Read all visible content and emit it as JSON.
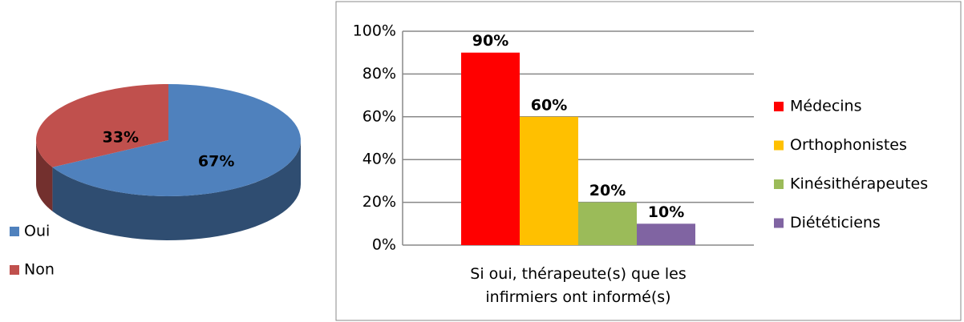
{
  "chart_data": [
    {
      "type": "pie",
      "categories": [
        "Oui",
        "Non"
      ],
      "values": [
        67,
        33
      ],
      "value_labels": [
        "67%",
        "33%"
      ],
      "colors": [
        "#4f81bd",
        "#c0504d"
      ],
      "legend": "bottom-left"
    },
    {
      "type": "bar",
      "categories": [
        "Si oui, thérapeute(s) que les infirmiers ont informé(s)"
      ],
      "series": [
        {
          "name": "Médecins",
          "color": "#ff0000",
          "values": [
            90
          ],
          "value_labels": [
            "90%"
          ]
        },
        {
          "name": "Orthophonistes",
          "color": "#ffc000",
          "values": [
            60
          ],
          "value_labels": [
            "60%"
          ]
        },
        {
          "name": "Kinésithérapeutes",
          "color": "#9bbb59",
          "values": [
            20
          ],
          "value_labels": [
            "20%"
          ]
        },
        {
          "name": "Diététiciens",
          "color": "#8064a2",
          "values": [
            10
          ],
          "value_labels": [
            "10%"
          ]
        }
      ],
      "ylim": [
        0,
        100
      ],
      "yticks": [
        {
          "value": 0,
          "label": "0%"
        },
        {
          "value": 20,
          "label": "20%"
        },
        {
          "value": 40,
          "label": "40%"
        },
        {
          "value": 60,
          "label": "60%"
        },
        {
          "value": 80,
          "label": "80%"
        },
        {
          "value": 100,
          "label": "100%"
        }
      ],
      "grid": true,
      "legend": "right"
    }
  ]
}
